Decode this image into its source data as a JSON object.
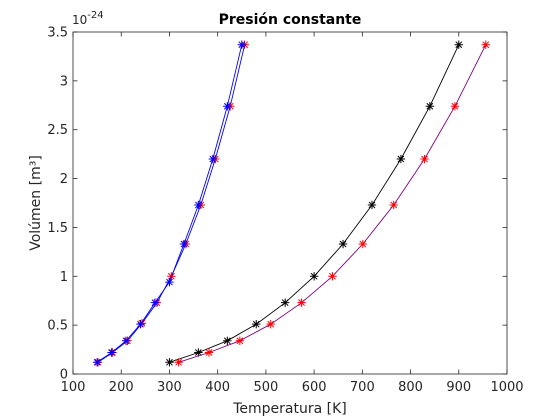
{
  "chart_data": {
    "type": "line",
    "title": "Presión constante",
    "xlabel": "Temperatura [K]",
    "ylabel": "Volúmen [m³]",
    "y_exponent_base": "10",
    "y_exponent_power": "-24",
    "xlim": [
      100,
      1000
    ],
    "ylim": [
      0,
      3.5
    ],
    "xticks": [
      100,
      200,
      300,
      400,
      500,
      600,
      700,
      800,
      900,
      1000
    ],
    "yticks": [
      0,
      0.5,
      1,
      1.5,
      2,
      2.5,
      3,
      3.5
    ],
    "grid": false,
    "series": [
      {
        "color": "#0000ff",
        "marker": "*",
        "marker_color": "#ff0000",
        "x": [
          152,
          182,
          213,
          243,
          274,
          304,
          334,
          365,
          395,
          426,
          456
        ],
        "y": [
          0.12,
          0.22,
          0.34,
          0.52,
          0.73,
          1.0,
          1.33,
          1.73,
          2.2,
          2.74,
          3.37
        ]
      },
      {
        "color": "#0000ff",
        "marker": "*",
        "marker_color": "#0000ff",
        "x": [
          150,
          180,
          210,
          240,
          270,
          300,
          330,
          360,
          390,
          420,
          450
        ],
        "y": [
          0.12,
          0.22,
          0.34,
          0.51,
          0.73,
          0.94,
          1.33,
          1.73,
          2.2,
          2.74,
          3.37
        ]
      },
      {
        "color": "#000000",
        "marker": "*",
        "marker_color": "#000000",
        "x": [
          300,
          360,
          420,
          480,
          540,
          600,
          660,
          720,
          780,
          840,
          900
        ],
        "y": [
          0.12,
          0.22,
          0.34,
          0.51,
          0.73,
          1.0,
          1.33,
          1.73,
          2.2,
          2.74,
          3.37
        ]
      },
      {
        "color": "#800080",
        "marker": "*",
        "marker_color": "#ff0000",
        "x": [
          319,
          382,
          446,
          510,
          574,
          638,
          701,
          765,
          829,
          892,
          956
        ],
        "y": [
          0.12,
          0.22,
          0.34,
          0.51,
          0.73,
          1.0,
          1.33,
          1.73,
          2.2,
          2.74,
          3.37
        ]
      }
    ]
  }
}
